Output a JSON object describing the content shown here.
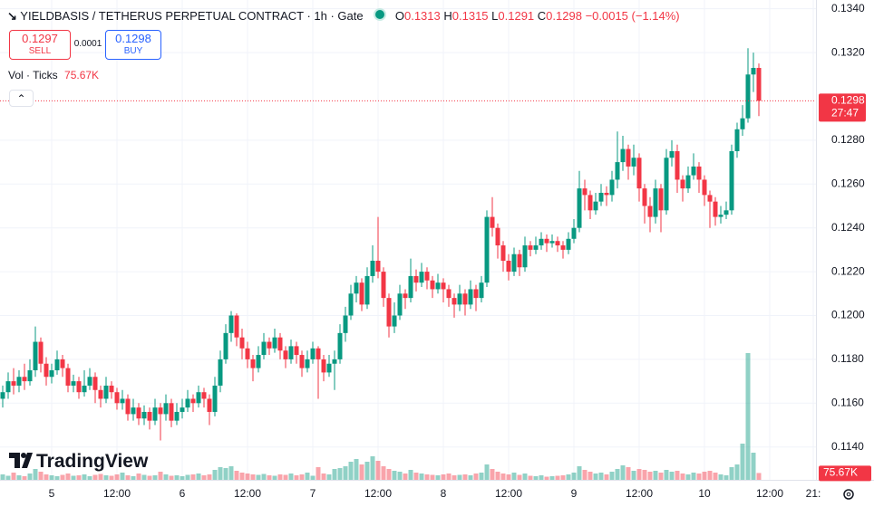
{
  "chart_data": {
    "type": "candlestick",
    "title": "YIELDBASIS / TETHERUS PERPETUAL CONTRACT · 1h · Gate",
    "ohlc_keys": [
      "O",
      "H",
      "L",
      "C"
    ],
    "change": "−0.0015 (−1.14%)",
    "sell_price": 0.1297,
    "sell_label": "SELL",
    "spread": 0.0001,
    "buy_price": 0.1298,
    "buy_label": "BUY",
    "volume_title": "Vol · Ticks",
    "current_volume_label": "75.67K",
    "countdown": "27:47",
    "logo": "TradingView",
    "up_color": "#089981",
    "down_color": "#f23645",
    "xlim": [
      -0.5,
      149.5
    ],
    "xticks": [
      {
        "value": 9,
        "label": "5"
      },
      {
        "value": 21,
        "label": "12:00"
      },
      {
        "value": 33,
        "label": "6"
      },
      {
        "value": 45,
        "label": "12:00"
      },
      {
        "value": 57,
        "label": "7"
      },
      {
        "value": 69,
        "label": "12:00"
      },
      {
        "value": 81,
        "label": "8"
      },
      {
        "value": 93,
        "label": "12:00"
      },
      {
        "value": 105,
        "label": "9"
      },
      {
        "value": 117,
        "label": "12:00"
      },
      {
        "value": 129,
        "label": "10"
      },
      {
        "value": 141,
        "label": "12:00"
      },
      {
        "value": 149,
        "label": "21:"
      }
    ],
    "ylim": [
      0.1125,
      0.1344
    ],
    "yticks": [
      {
        "value": 0.114,
        "label": "0.1140"
      },
      {
        "value": 0.116,
        "label": "0.1160"
      },
      {
        "value": 0.118,
        "label": "0.1180"
      },
      {
        "value": 0.12,
        "label": "0.1200"
      },
      {
        "value": 0.122,
        "label": "0.1220"
      },
      {
        "value": 0.124,
        "label": "0.1240"
      },
      {
        "value": 0.126,
        "label": "0.1260"
      },
      {
        "value": 0.128,
        "label": "0.1280"
      },
      {
        "value": 0.132,
        "label": "0.1320"
      },
      {
        "value": 0.134,
        "label": "0.1340"
      }
    ],
    "grid": true,
    "candles": [
      [
        0.1162,
        0.1168,
        0.1158,
        0.1165
      ],
      [
        0.1165,
        0.1174,
        0.1162,
        0.117
      ],
      [
        0.117,
        0.1176,
        0.1164,
        0.1168
      ],
      [
        0.1168,
        0.1175,
        0.1165,
        0.1172
      ],
      [
        0.1172,
        0.1178,
        0.1166,
        0.117
      ],
      [
        0.117,
        0.118,
        0.1168,
        0.1175
      ],
      [
        0.1175,
        0.1195,
        0.1172,
        0.1188
      ],
      [
        0.1188,
        0.119,
        0.1174,
        0.1178
      ],
      [
        0.1178,
        0.1181,
        0.1168,
        0.1172
      ],
      [
        0.1172,
        0.1178,
        0.1169,
        0.1175
      ],
      [
        0.1175,
        0.1184,
        0.1173,
        0.118
      ],
      [
        0.118,
        0.1182,
        0.1172,
        0.1176
      ],
      [
        0.1176,
        0.1178,
        0.1165,
        0.1168
      ],
      [
        0.1168,
        0.1173,
        0.1165,
        0.117
      ],
      [
        0.117,
        0.1172,
        0.1162,
        0.1165
      ],
      [
        0.1165,
        0.1175,
        0.1163,
        0.1168
      ],
      [
        0.1168,
        0.1176,
        0.1166,
        0.1172
      ],
      [
        0.1172,
        0.1174,
        0.116,
        0.1166
      ],
      [
        0.1166,
        0.1168,
        0.1158,
        0.1162
      ],
      [
        0.1162,
        0.1172,
        0.116,
        0.1168
      ],
      [
        0.1168,
        0.117,
        0.1162,
        0.1165
      ],
      [
        0.1165,
        0.1167,
        0.1157,
        0.116
      ],
      [
        0.116,
        0.1166,
        0.1157,
        0.1162
      ],
      [
        0.1162,
        0.1164,
        0.1152,
        0.1155
      ],
      [
        0.1155,
        0.1162,
        0.1152,
        0.1158
      ],
      [
        0.1158,
        0.116,
        0.115,
        0.1153
      ],
      [
        0.1153,
        0.1159,
        0.115,
        0.1156
      ],
      [
        0.1156,
        0.1158,
        0.1148,
        0.1152
      ],
      [
        0.1152,
        0.1162,
        0.115,
        0.1158
      ],
      [
        0.1158,
        0.116,
        0.1143,
        0.1155
      ],
      [
        0.1155,
        0.1164,
        0.1152,
        0.116
      ],
      [
        0.116,
        0.1162,
        0.1149,
        0.1152
      ],
      [
        0.1152,
        0.116,
        0.115,
        0.1156
      ],
      [
        0.1156,
        0.1162,
        0.1153,
        0.1158
      ],
      [
        0.1158,
        0.1166,
        0.1156,
        0.1162
      ],
      [
        0.1162,
        0.1164,
        0.1156,
        0.116
      ],
      [
        0.116,
        0.1168,
        0.1158,
        0.1165
      ],
      [
        0.1165,
        0.1167,
        0.1158,
        0.1162
      ],
      [
        0.1162,
        0.1164,
        0.115,
        0.1156
      ],
      [
        0.1156,
        0.1172,
        0.1154,
        0.1168
      ],
      [
        0.1168,
        0.1184,
        0.1165,
        0.118
      ],
      [
        0.118,
        0.1196,
        0.1178,
        0.1192
      ],
      [
        0.1192,
        0.1202,
        0.1188,
        0.12
      ],
      [
        0.12,
        0.1201,
        0.1186,
        0.119
      ],
      [
        0.119,
        0.1194,
        0.118,
        0.1185
      ],
      [
        0.1185,
        0.1188,
        0.1176,
        0.118
      ],
      [
        0.118,
        0.1182,
        0.117,
        0.1176
      ],
      [
        0.1176,
        0.1186,
        0.1174,
        0.1182
      ],
      [
        0.1182,
        0.1192,
        0.118,
        0.1188
      ],
      [
        0.1188,
        0.119,
        0.1182,
        0.1185
      ],
      [
        0.1185,
        0.1194,
        0.1183,
        0.119
      ],
      [
        0.119,
        0.1192,
        0.118,
        0.1184
      ],
      [
        0.1184,
        0.1186,
        0.1176,
        0.118
      ],
      [
        0.118,
        0.1189,
        0.1178,
        0.1186
      ],
      [
        0.1186,
        0.1188,
        0.1178,
        0.1182
      ],
      [
        0.1182,
        0.1184,
        0.1172,
        0.1176
      ],
      [
        0.1176,
        0.1184,
        0.1174,
        0.118
      ],
      [
        0.118,
        0.1188,
        0.1178,
        0.1185
      ],
      [
        0.1185,
        0.1186,
        0.1162,
        0.118
      ],
      [
        0.118,
        0.1182,
        0.117,
        0.1174
      ],
      [
        0.1174,
        0.1182,
        0.1172,
        0.1178
      ],
      [
        0.1178,
        0.1184,
        0.1166,
        0.118
      ],
      [
        0.118,
        0.1196,
        0.1178,
        0.1192
      ],
      [
        0.1192,
        0.1204,
        0.1188,
        0.12
      ],
      [
        0.12,
        0.1214,
        0.1198,
        0.121
      ],
      [
        0.121,
        0.1218,
        0.1206,
        0.1215
      ],
      [
        0.1215,
        0.1217,
        0.1202,
        0.1205
      ],
      [
        0.1205,
        0.1222,
        0.1203,
        0.1218
      ],
      [
        0.1218,
        0.1232,
        0.1215,
        0.1225
      ],
      [
        0.1225,
        0.1245,
        0.1217,
        0.122
      ],
      [
        0.122,
        0.1222,
        0.1204,
        0.1208
      ],
      [
        0.1208,
        0.121,
        0.119,
        0.1195
      ],
      [
        0.1195,
        0.1206,
        0.1192,
        0.12
      ],
      [
        0.12,
        0.1214,
        0.1198,
        0.121
      ],
      [
        0.121,
        0.1212,
        0.1203,
        0.1208
      ],
      [
        0.1208,
        0.1226,
        0.1206,
        0.1218
      ],
      [
        0.1218,
        0.1221,
        0.1211,
        0.1215
      ],
      [
        0.1215,
        0.1224,
        0.1213,
        0.122
      ],
      [
        0.122,
        0.1222,
        0.1212,
        0.1216
      ],
      [
        0.1216,
        0.1218,
        0.1208,
        0.1212
      ],
      [
        0.1212,
        0.1219,
        0.121,
        0.1215
      ],
      [
        0.1215,
        0.1217,
        0.1206,
        0.1212
      ],
      [
        0.1212,
        0.1214,
        0.1204,
        0.1208
      ],
      [
        0.1208,
        0.121,
        0.1199,
        0.1205
      ],
      [
        0.1205,
        0.1214,
        0.1202,
        0.121
      ],
      [
        0.121,
        0.1212,
        0.12,
        0.1205
      ],
      [
        0.1205,
        0.1216,
        0.1203,
        0.1212
      ],
      [
        0.1212,
        0.1214,
        0.1202,
        0.1208
      ],
      [
        0.1208,
        0.1218,
        0.1206,
        0.1215
      ],
      [
        0.1215,
        0.1248,
        0.1213,
        0.1245
      ],
      [
        0.1245,
        0.1254,
        0.1236,
        0.124
      ],
      [
        0.124,
        0.1242,
        0.1226,
        0.1232
      ],
      [
        0.1232,
        0.1234,
        0.122,
        0.1225
      ],
      [
        0.1225,
        0.1228,
        0.1216,
        0.122
      ],
      [
        0.122,
        0.1231,
        0.1218,
        0.1228
      ],
      [
        0.1228,
        0.123,
        0.1218,
        0.1222
      ],
      [
        0.1222,
        0.1236,
        0.122,
        0.1232
      ],
      [
        0.1232,
        0.1234,
        0.1227,
        0.123
      ],
      [
        0.123,
        0.1236,
        0.1228,
        0.1232
      ],
      [
        0.1232,
        0.1238,
        0.123,
        0.1235
      ],
      [
        0.1235,
        0.1237,
        0.1229,
        0.1233
      ],
      [
        0.1233,
        0.1237,
        0.1231,
        0.1234
      ],
      [
        0.1234,
        0.1236,
        0.1229,
        0.1232
      ],
      [
        0.1232,
        0.1234,
        0.1226,
        0.123
      ],
      [
        0.123,
        0.1238,
        0.1228,
        0.1235
      ],
      [
        0.1235,
        0.1244,
        0.1233,
        0.124
      ],
      [
        0.124,
        0.1266,
        0.1238,
        0.1258
      ],
      [
        0.1258,
        0.1262,
        0.1248,
        0.1255
      ],
      [
        0.1255,
        0.1257,
        0.1244,
        0.1248
      ],
      [
        0.1248,
        0.1256,
        0.1246,
        0.1252
      ],
      [
        0.1252,
        0.126,
        0.125,
        0.1256
      ],
      [
        0.1256,
        0.1259,
        0.125,
        0.1255
      ],
      [
        0.1255,
        0.1266,
        0.1252,
        0.1262
      ],
      [
        0.1262,
        0.1284,
        0.1258,
        0.127
      ],
      [
        0.127,
        0.1282,
        0.1266,
        0.1276
      ],
      [
        0.1276,
        0.1278,
        0.1262,
        0.1268
      ],
      [
        0.1268,
        0.1278,
        0.1264,
        0.1272
      ],
      [
        0.1272,
        0.1274,
        0.1252,
        0.1258
      ],
      [
        0.1258,
        0.126,
        0.1242,
        0.125
      ],
      [
        0.125,
        0.1254,
        0.1238,
        0.1245
      ],
      [
        0.1245,
        0.1262,
        0.1242,
        0.1258
      ],
      [
        0.1258,
        0.126,
        0.1238,
        0.1248
      ],
      [
        0.1248,
        0.1276,
        0.1246,
        0.1272
      ],
      [
        0.1272,
        0.128,
        0.1268,
        0.1275
      ],
      [
        0.1275,
        0.1278,
        0.1256,
        0.1262
      ],
      [
        0.1262,
        0.1264,
        0.1252,
        0.1258
      ],
      [
        0.1258,
        0.1268,
        0.1256,
        0.1264
      ],
      [
        0.1264,
        0.1274,
        0.1262,
        0.1268
      ],
      [
        0.1268,
        0.127,
        0.1256,
        0.1262
      ],
      [
        0.1262,
        0.1264,
        0.125,
        0.1255
      ],
      [
        0.1255,
        0.1257,
        0.124,
        0.1252
      ],
      [
        0.1252,
        0.1254,
        0.1241,
        0.1245
      ],
      [
        0.1245,
        0.125,
        0.1242,
        0.1246
      ],
      [
        0.1246,
        0.1252,
        0.1244,
        0.1248
      ],
      [
        0.1248,
        0.1278,
        0.1246,
        0.1275
      ],
      [
        0.1275,
        0.1288,
        0.1272,
        0.1285
      ],
      [
        0.1285,
        0.1296,
        0.1282,
        0.129
      ],
      [
        0.129,
        0.1322,
        0.1288,
        0.131
      ],
      [
        0.131,
        0.132,
        0.1302,
        0.1313
      ],
      [
        0.1313,
        0.1315,
        0.1291,
        0.1298
      ]
    ],
    "volume": [
      60000,
      45000,
      80000,
      50000,
      40000,
      70000,
      120000,
      90000,
      60000,
      50000,
      40000,
      55000,
      70000,
      45000,
      50000,
      60000,
      40000,
      55000,
      65000,
      50000,
      45000,
      60000,
      80000,
      50000,
      40000,
      70000,
      55000,
      45000,
      50000,
      90000,
      60000,
      45000,
      50000,
      40000,
      55000,
      60000,
      70000,
      50000,
      60000,
      110000,
      140000,
      130000,
      150000,
      100000,
      80000,
      70000,
      60000,
      55000,
      65000,
      50000,
      45000,
      60000,
      55000,
      70000,
      50000,
      60000,
      80000,
      45000,
      140000,
      70000,
      60000,
      120000,
      130000,
      150000,
      200000,
      230000,
      170000,
      200000,
      260000,
      210000,
      150000,
      120000,
      100000,
      90000,
      70000,
      110000,
      80000,
      70000,
      60000,
      55000,
      50000,
      60000,
      70000,
      50000,
      55000,
      60000,
      50000,
      70000,
      80000,
      170000,
      120000,
      90000,
      70000,
      60000,
      80000,
      55000,
      70000,
      45000,
      40000,
      50000,
      35000,
      40000,
      45000,
      50000,
      60000,
      80000,
      150000,
      110000,
      90000,
      70000,
      80000,
      60000,
      90000,
      120000,
      160000,
      140000,
      100000,
      120000,
      110000,
      90000,
      100000,
      80000,
      110000,
      90000,
      100000,
      70000,
      60000,
      80000,
      70000,
      90000,
      100000,
      80000,
      60000,
      50000,
      140000,
      170000,
      400000,
      1400000,
      300000,
      75670
    ]
  }
}
